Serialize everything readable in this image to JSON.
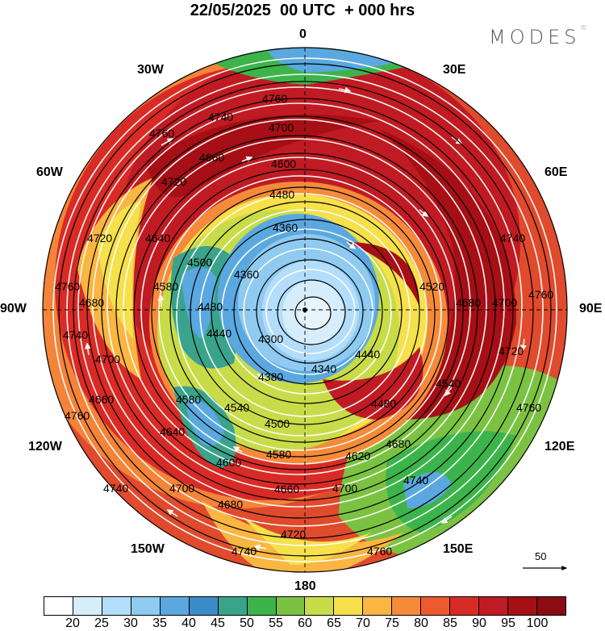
{
  "header": {
    "title": "22/05/2025  00 UTC  + 000 hrs",
    "brand": "MODES",
    "brand_mark": "©"
  },
  "map": {
    "projection": "north polar stereographic",
    "longitude_labels": {
      "top": "0",
      "top_right": "30E",
      "upper_right": "60E",
      "right": "90E",
      "lower_right": "120E",
      "bottom_right": "150E",
      "bottom": "180",
      "bottom_left": "150W",
      "lower_left": "120W",
      "left": "90W",
      "upper_left": "60W",
      "top_left": "30W"
    },
    "contour_labels": [
      "4300",
      "4340",
      "4360",
      "4380",
      "4440",
      "4480",
      "4500",
      "4520",
      "4540",
      "4580",
      "4600",
      "4620",
      "4640",
      "4660",
      "4680",
      "4700",
      "4720",
      "4740",
      "4760"
    ],
    "reference_vector": {
      "value": "50"
    },
    "colors": {
      "core_low": "#e8f4fb",
      "jet": "#a50f15"
    }
  },
  "colorbar": {
    "ticks": [
      "20",
      "25",
      "30",
      "35",
      "40",
      "45",
      "50",
      "55",
      "60",
      "65",
      "70",
      "75",
      "80",
      "85",
      "90",
      "95",
      "100"
    ],
    "colors": [
      "#ffffff",
      "#d6eefb",
      "#b3defb",
      "#8fcaf0",
      "#5aa8df",
      "#3a8cc8",
      "#3aa38c",
      "#3cb44b",
      "#7cc242",
      "#c8dc49",
      "#f6e04b",
      "#f9b642",
      "#f58b3a",
      "#ec5a2f",
      "#d92b26",
      "#c01b22",
      "#a50f15",
      "#8b0c12"
    ]
  }
}
